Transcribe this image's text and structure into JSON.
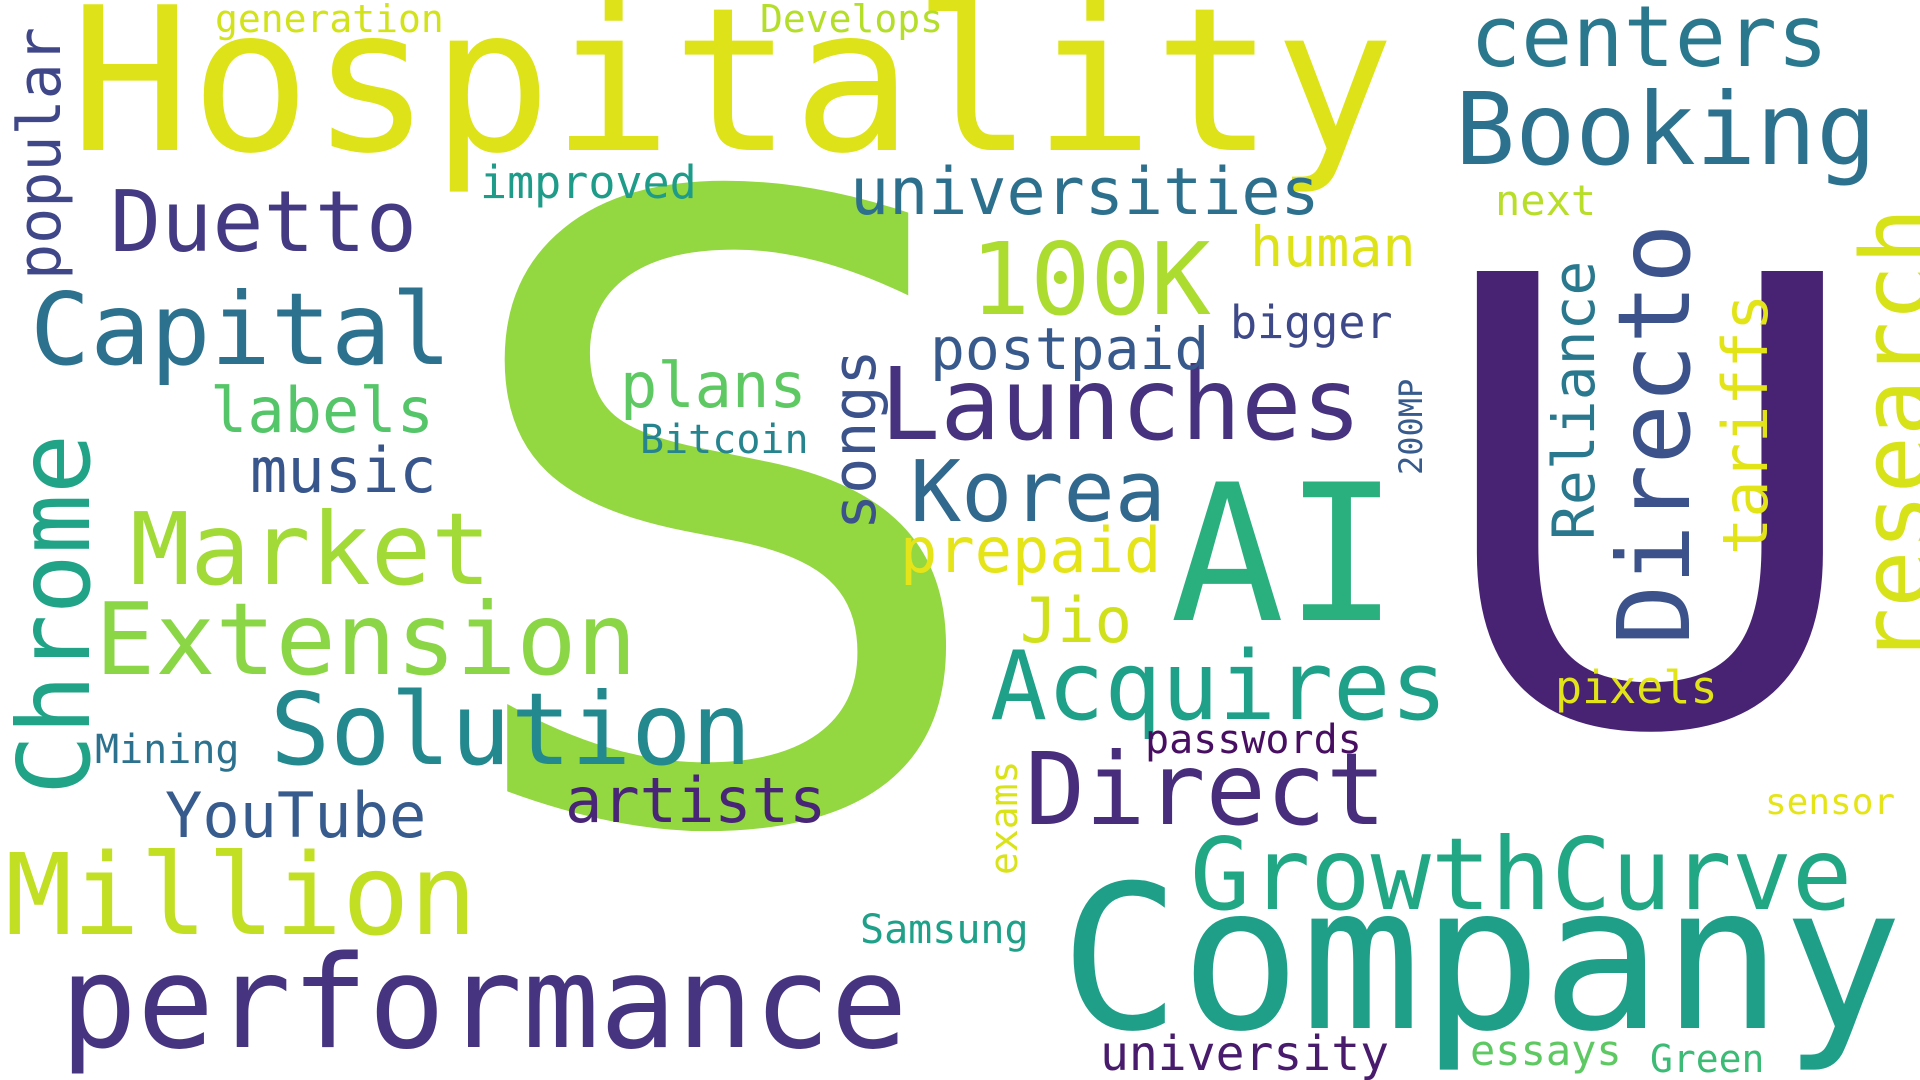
{
  "word_cloud": {
    "background_color": "#ffffff",
    "words": [
      {
        "text": "S",
        "color": "#93d741"
      },
      {
        "text": "U",
        "color": "#482374"
      },
      {
        "text": "Hospitality",
        "color": "#dde318"
      },
      {
        "text": "Company",
        "color": "#1f9f88"
      },
      {
        "text": "AI",
        "color": "#2ab07f"
      },
      {
        "text": "performance",
        "color": "#463480"
      },
      {
        "text": "Launches",
        "color": "#46327e"
      },
      {
        "text": "GrowthCurve",
        "color": "#22a785"
      },
      {
        "text": "Booking",
        "color": "#2c728e"
      },
      {
        "text": "centers",
        "color": "#2a788e"
      },
      {
        "text": "Capital",
        "color": "#2c718e"
      },
      {
        "text": "Extension",
        "color": "#8bd646"
      },
      {
        "text": "Million",
        "color": "#c2df23"
      },
      {
        "text": "Solution",
        "color": "#23898e"
      },
      {
        "text": "Market",
        "color": "#a2da37"
      },
      {
        "text": "Direct",
        "color": "#472d7b"
      },
      {
        "text": "Acquires",
        "color": "#1fa088"
      },
      {
        "text": "Directo",
        "color": "#3b528b"
      },
      {
        "text": "research",
        "color": "#d8e219"
      },
      {
        "text": "Chrome",
        "color": "#20a386"
      },
      {
        "text": "100K",
        "color": "#addc30"
      },
      {
        "text": "Duetto",
        "color": "#443983"
      },
      {
        "text": "Korea",
        "color": "#31688e"
      },
      {
        "text": "universities",
        "color": "#2d708e"
      },
      {
        "text": "artists",
        "color": "#482576"
      },
      {
        "text": "YouTube",
        "color": "#375b8d"
      },
      {
        "text": "music",
        "color": "#39568c"
      },
      {
        "text": "labels",
        "color": "#54c568"
      },
      {
        "text": "plans",
        "color": "#5ec962"
      },
      {
        "text": "postpaid",
        "color": "#38598c"
      },
      {
        "text": "prepaid",
        "color": "#e5e419"
      },
      {
        "text": "Jio",
        "color": "#d0e11c"
      },
      {
        "text": "human",
        "color": "#dde318"
      },
      {
        "text": "bigger",
        "color": "#3e4989"
      },
      {
        "text": "popular",
        "color": "#3f4788"
      },
      {
        "text": "songs",
        "color": "#3b528b"
      },
      {
        "text": "Reliance",
        "color": "#2a788e"
      },
      {
        "text": "tariffs",
        "color": "#e2e418"
      },
      {
        "text": "improved",
        "color": "#1e9c89"
      },
      {
        "text": "Bitcoin",
        "color": "#25848e"
      },
      {
        "text": "Mining",
        "color": "#2c728e"
      },
      {
        "text": "passwords",
        "color": "#470e61"
      },
      {
        "text": "exams",
        "color": "#dae319"
      },
      {
        "text": "university",
        "color": "#481b6d"
      },
      {
        "text": "essays",
        "color": "#5ec962"
      },
      {
        "text": "Green",
        "color": "#3bbb75"
      },
      {
        "text": "Samsung",
        "color": "#1fa088"
      },
      {
        "text": "pixels",
        "color": "#e2e418"
      },
      {
        "text": "sensor",
        "color": "#e5e419"
      },
      {
        "text": "next",
        "color": "#b8de29"
      },
      {
        "text": "200MP",
        "color": "#375b8d"
      },
      {
        "text": "generation",
        "color": "#d2e21b"
      },
      {
        "text": "Develops",
        "color": "#b5de2b"
      }
    ]
  }
}
